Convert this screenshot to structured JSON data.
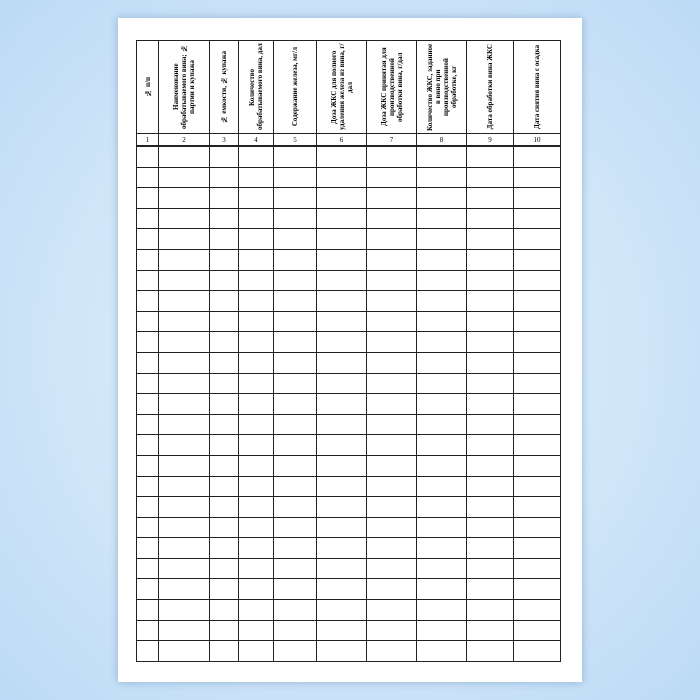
{
  "document": {
    "columns": [
      {
        "number": "1",
        "header": "№ п/п"
      },
      {
        "number": "2",
        "header": "Наименование обрабатываемого вина; № партии и купажа"
      },
      {
        "number": "3",
        "header": "№ емкости, № купажа"
      },
      {
        "number": "4",
        "header": "Количество обрабатываемого вина, дал"
      },
      {
        "number": "5",
        "header": "Содержание железа, мг/л"
      },
      {
        "number": "6",
        "header": "Доза ЖКС для полного удаления железа из вина, г/дал"
      },
      {
        "number": "7",
        "header": "Доза ЖКС принятая для производственной обработки вина, г/дал"
      },
      {
        "number": "8",
        "header": "Количество ЖКС, заданное в вино при производственной обработке, кг"
      },
      {
        "number": "9",
        "header": "Дата обработки вина ЖКС"
      },
      {
        "number": "10",
        "header": "Дата снятия вина с осадка"
      }
    ],
    "empty_rows": 25
  }
}
